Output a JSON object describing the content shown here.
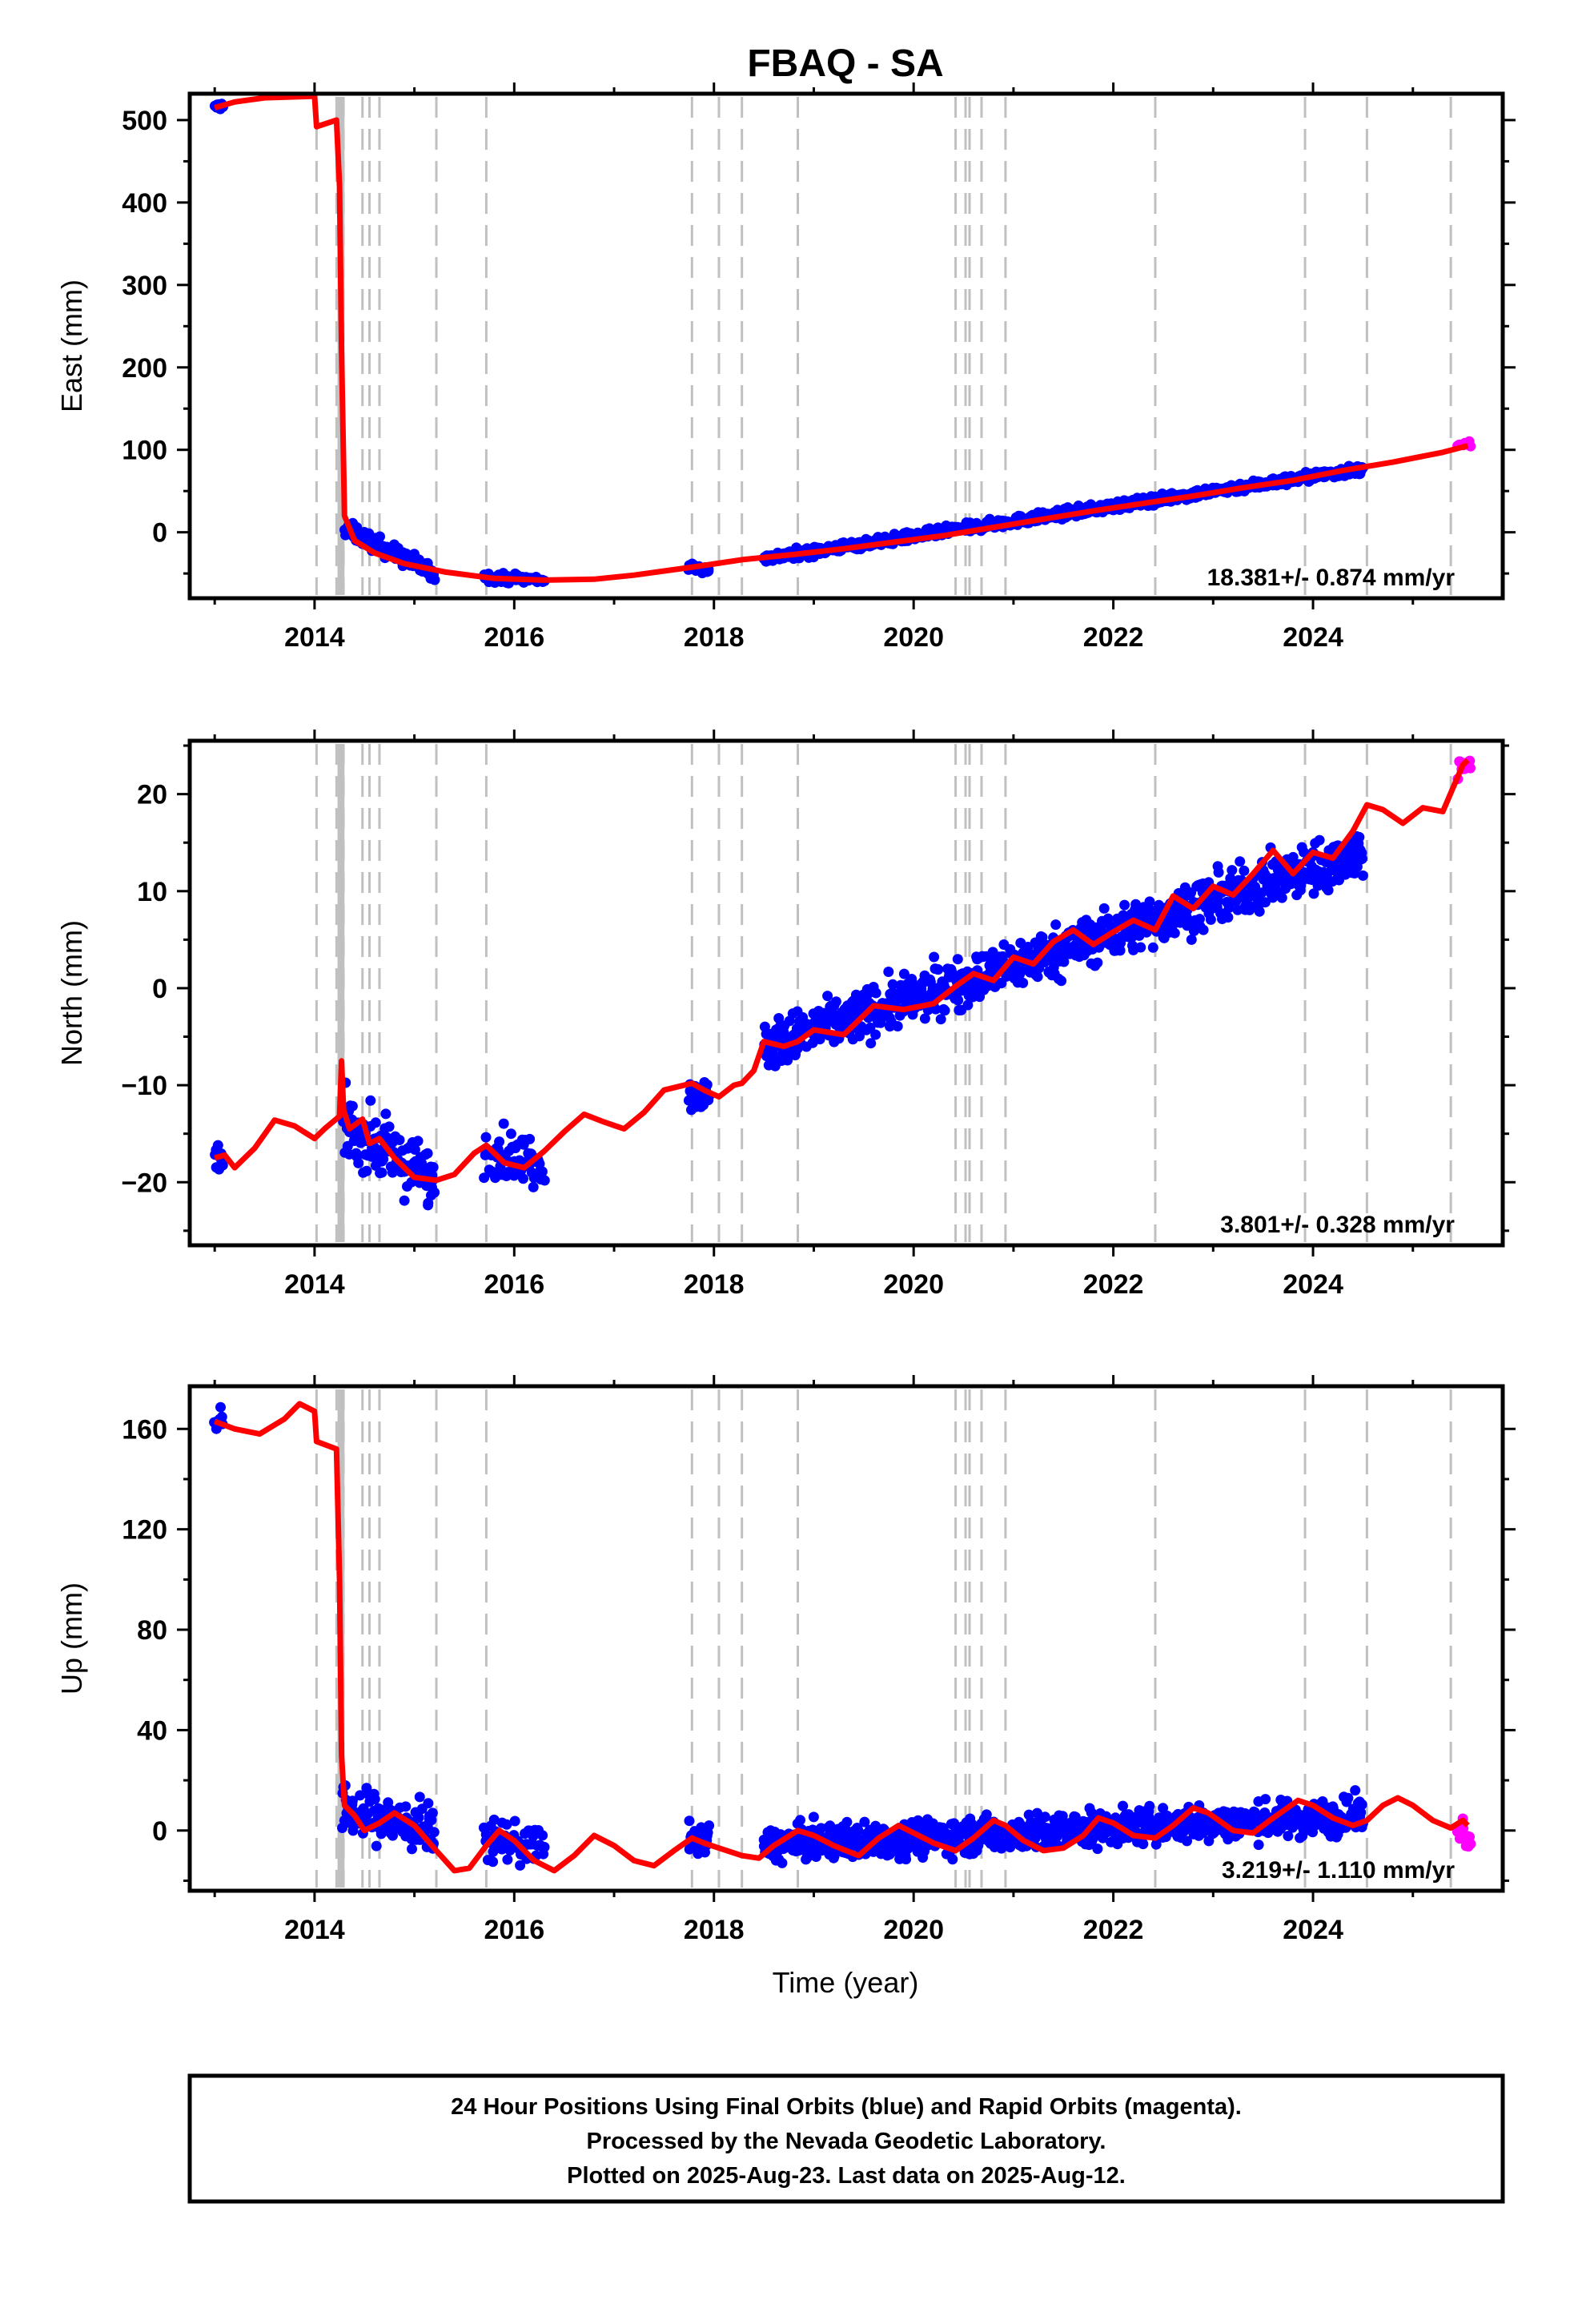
{
  "chart_data": {
    "type": "scatter",
    "title": "FBAQ - SA",
    "xlabel": "Time (year)",
    "xlim": [
      2012.75,
      2025.9
    ],
    "x_ticks": [
      "2014",
      "2016",
      "2018",
      "2020",
      "2022",
      "2024"
    ],
    "grid": false,
    "legend": "none",
    "colors": {
      "final": "#0000ff",
      "rapid": "#ff00ff",
      "model": "#ff0000",
      "event_lines": "#c0c0c0"
    },
    "event_lines": [
      2014.02,
      2014.22,
      2014.25,
      2014.27,
      2014.29,
      2014.48,
      2014.55,
      2014.65,
      2015.22,
      2015.72,
      2017.78,
      2018.05,
      2018.28,
      2018.84,
      2020.42,
      2020.52,
      2020.56,
      2020.68,
      2020.92,
      2022.42,
      2023.92,
      2024.54,
      2025.38
    ],
    "footer": [
      "24 Hour Positions Using Final Orbits (blue) and Rapid Orbits (magenta).",
      "Processed by the Nevada Geodetic Laboratory.",
      "Plotted on 2025-Aug-23. Last data on 2025-Aug-12."
    ],
    "panels": [
      {
        "name": "east",
        "ylabel": "East (mm)",
        "ylim": [
          -80,
          532
        ],
        "y_ticks": [
          0,
          100,
          200,
          300,
          400,
          500
        ],
        "rate_text": "18.381+/- 0.874 mm/yr",
        "model_line": [
          [
            2013.0,
            515
          ],
          [
            2013.2,
            522
          ],
          [
            2013.5,
            527
          ],
          [
            2014.0,
            529
          ],
          [
            2014.02,
            492
          ],
          [
            2014.22,
            500
          ],
          [
            2014.25,
            420
          ],
          [
            2014.27,
            220
          ],
          [
            2014.3,
            20
          ],
          [
            2014.4,
            -10
          ],
          [
            2014.6,
            -25
          ],
          [
            2014.9,
            -38
          ],
          [
            2015.3,
            -48
          ],
          [
            2015.8,
            -56
          ],
          [
            2016.3,
            -58
          ],
          [
            2016.8,
            -57
          ],
          [
            2017.2,
            -52
          ],
          [
            2017.8,
            -42
          ],
          [
            2018.3,
            -33
          ],
          [
            2018.8,
            -27
          ],
          [
            2019.3,
            -20
          ],
          [
            2019.8,
            -12
          ],
          [
            2020.3,
            -4
          ],
          [
            2020.8,
            6
          ],
          [
            2021.3,
            16
          ],
          [
            2021.8,
            26
          ],
          [
            2022.3,
            35
          ],
          [
            2022.8,
            44
          ],
          [
            2023.3,
            54
          ],
          [
            2023.8,
            63
          ],
          [
            2024.3,
            75
          ],
          [
            2024.8,
            85
          ],
          [
            2025.3,
            97
          ],
          [
            2025.55,
            105
          ]
        ],
        "final_points": [
          {
            "x0": 2013.0,
            "x1": 2013.08,
            "y0": 515,
            "y1": 518,
            "n": 10,
            "noise": 3
          },
          {
            "x0": 2014.3,
            "x1": 2015.2,
            "y0": 5,
            "y1": -50,
            "n": 140,
            "noise": 7
          },
          {
            "x0": 2015.7,
            "x1": 2016.3,
            "y0": -54,
            "y1": -58,
            "n": 60,
            "noise": 4
          },
          {
            "x0": 2017.75,
            "x1": 2017.95,
            "y0": -42,
            "y1": -46,
            "n": 30,
            "noise": 3
          },
          {
            "x0": 2018.5,
            "x1": 2024.5,
            "y0": -32,
            "y1": 77,
            "n": 900,
            "noise": 4
          }
        ],
        "rapid_points": [
          {
            "x0": 2025.45,
            "x1": 2025.58,
            "y0": 104,
            "y1": 108,
            "n": 12,
            "noise": 2
          }
        ]
      },
      {
        "name": "north",
        "ylabel": "North (mm)",
        "ylim": [
          -26.5,
          25.5
        ],
        "y_ticks": [
          -20,
          -10,
          0,
          10,
          20
        ],
        "rate_text": "3.801+/- 0.328 mm/yr",
        "model_line": [
          [
            2013.0,
            -17.5
          ],
          [
            2013.1,
            -17.2
          ],
          [
            2013.2,
            -18.5
          ],
          [
            2013.4,
            -16.5
          ],
          [
            2013.6,
            -13.6
          ],
          [
            2013.8,
            -14.2
          ],
          [
            2014.0,
            -15.5
          ],
          [
            2014.1,
            -14.5
          ],
          [
            2014.25,
            -13.2
          ],
          [
            2014.27,
            -7.5
          ],
          [
            2014.29,
            -12.5
          ],
          [
            2014.35,
            -14.5
          ],
          [
            2014.48,
            -13.5
          ],
          [
            2014.55,
            -16.0
          ],
          [
            2014.65,
            -15.5
          ],
          [
            2014.8,
            -17.5
          ],
          [
            2015.0,
            -19.5
          ],
          [
            2015.22,
            -19.8
          ],
          [
            2015.4,
            -19.2
          ],
          [
            2015.6,
            -17.0
          ],
          [
            2015.72,
            -16.2
          ],
          [
            2015.9,
            -18.0
          ],
          [
            2016.1,
            -18.5
          ],
          [
            2016.3,
            -16.8
          ],
          [
            2016.5,
            -14.8
          ],
          [
            2016.7,
            -13.0
          ],
          [
            2016.9,
            -13.8
          ],
          [
            2017.1,
            -14.5
          ],
          [
            2017.3,
            -12.8
          ],
          [
            2017.5,
            -10.5
          ],
          [
            2017.78,
            -9.8
          ],
          [
            2017.9,
            -10.5
          ],
          [
            2018.05,
            -11.2
          ],
          [
            2018.2,
            -10.0
          ],
          [
            2018.28,
            -9.8
          ],
          [
            2018.4,
            -8.5
          ],
          [
            2018.5,
            -5.5
          ],
          [
            2018.7,
            -6.0
          ],
          [
            2018.84,
            -5.5
          ],
          [
            2019.0,
            -4.3
          ],
          [
            2019.3,
            -4.8
          ],
          [
            2019.6,
            -1.8
          ],
          [
            2019.9,
            -2.2
          ],
          [
            2020.2,
            -1.6
          ],
          [
            2020.42,
            0.2
          ],
          [
            2020.6,
            1.5
          ],
          [
            2020.8,
            0.8
          ],
          [
            2021.0,
            3.2
          ],
          [
            2021.2,
            2.5
          ],
          [
            2021.4,
            4.8
          ],
          [
            2021.6,
            6.0
          ],
          [
            2021.8,
            4.5
          ],
          [
            2022.0,
            5.8
          ],
          [
            2022.2,
            7.0
          ],
          [
            2022.42,
            6.0
          ],
          [
            2022.6,
            9.5
          ],
          [
            2022.8,
            8.2
          ],
          [
            2023.0,
            10.5
          ],
          [
            2023.2,
            9.6
          ],
          [
            2023.4,
            11.8
          ],
          [
            2023.6,
            14.2
          ],
          [
            2023.8,
            11.8
          ],
          [
            2024.0,
            14.0
          ],
          [
            2024.2,
            13.4
          ],
          [
            2024.4,
            16.2
          ],
          [
            2024.54,
            18.9
          ],
          [
            2024.7,
            18.4
          ],
          [
            2024.9,
            17.0
          ],
          [
            2025.1,
            18.6
          ],
          [
            2025.3,
            18.2
          ],
          [
            2025.5,
            23.0
          ],
          [
            2025.55,
            23.5
          ]
        ],
        "final_points": [
          {
            "x0": 2013.0,
            "x1": 2013.08,
            "y0": -17.5,
            "y1": -17.8,
            "n": 10,
            "noise": 1
          },
          {
            "x0": 2014.28,
            "x1": 2015.2,
            "y0": -14.0,
            "y1": -20.0,
            "n": 140,
            "noise": 2.2
          },
          {
            "x0": 2015.7,
            "x1": 2016.3,
            "y0": -16.5,
            "y1": -18.0,
            "n": 60,
            "noise": 1.8
          },
          {
            "x0": 2017.75,
            "x1": 2017.95,
            "y0": -10.5,
            "y1": -11.2,
            "n": 30,
            "noise": 1.2
          },
          {
            "x0": 2018.5,
            "x1": 2024.5,
            "y0": -6.0,
            "y1": 14.0,
            "n": 900,
            "noise": 1.8
          }
        ],
        "rapid_points": [
          {
            "x0": 2025.45,
            "x1": 2025.58,
            "y0": 22.5,
            "y1": 23.5,
            "n": 12,
            "noise": 1
          }
        ]
      },
      {
        "name": "up",
        "ylabel": "Up (mm)",
        "ylim": [
          -24,
          177
        ],
        "y_ticks": [
          0,
          40,
          80,
          120,
          160
        ],
        "rate_text": "3.219+/- 1.110 mm/yr",
        "model_line": [
          [
            2013.0,
            163
          ],
          [
            2013.2,
            160
          ],
          [
            2013.45,
            158
          ],
          [
            2013.7,
            164
          ],
          [
            2013.85,
            170
          ],
          [
            2014.0,
            167
          ],
          [
            2014.02,
            155
          ],
          [
            2014.22,
            152
          ],
          [
            2014.25,
            100
          ],
          [
            2014.27,
            30
          ],
          [
            2014.3,
            10
          ],
          [
            2014.4,
            6
          ],
          [
            2014.5,
            0
          ],
          [
            2014.65,
            3
          ],
          [
            2014.8,
            7
          ],
          [
            2015.0,
            2
          ],
          [
            2015.22,
            -8
          ],
          [
            2015.4,
            -16
          ],
          [
            2015.55,
            -15
          ],
          [
            2015.72,
            -6
          ],
          [
            2015.85,
            0
          ],
          [
            2016.0,
            -4
          ],
          [
            2016.2,
            -12
          ],
          [
            2016.4,
            -16
          ],
          [
            2016.6,
            -10
          ],
          [
            2016.8,
            -2
          ],
          [
            2017.0,
            -6
          ],
          [
            2017.2,
            -12
          ],
          [
            2017.4,
            -14
          ],
          [
            2017.6,
            -8
          ],
          [
            2017.78,
            -3
          ],
          [
            2017.9,
            -5
          ],
          [
            2018.05,
            -7
          ],
          [
            2018.28,
            -10
          ],
          [
            2018.45,
            -11
          ],
          [
            2018.6,
            -6
          ],
          [
            2018.84,
            0
          ],
          [
            2019.0,
            -2
          ],
          [
            2019.2,
            -6
          ],
          [
            2019.45,
            -10
          ],
          [
            2019.65,
            -3
          ],
          [
            2019.85,
            2
          ],
          [
            2020.0,
            -1
          ],
          [
            2020.2,
            -5
          ],
          [
            2020.42,
            -8
          ],
          [
            2020.6,
            -3
          ],
          [
            2020.8,
            4
          ],
          [
            2020.92,
            2
          ],
          [
            2021.1,
            -4
          ],
          [
            2021.3,
            -8
          ],
          [
            2021.5,
            -7
          ],
          [
            2021.7,
            -2
          ],
          [
            2021.85,
            5
          ],
          [
            2022.0,
            3
          ],
          [
            2022.2,
            -2
          ],
          [
            2022.42,
            -3
          ],
          [
            2022.6,
            2
          ],
          [
            2022.8,
            9
          ],
          [
            2022.95,
            7
          ],
          [
            2023.2,
            0
          ],
          [
            2023.4,
            -1
          ],
          [
            2023.6,
            5
          ],
          [
            2023.85,
            12
          ],
          [
            2024.0,
            10
          ],
          [
            2024.2,
            5
          ],
          [
            2024.4,
            2
          ],
          [
            2024.54,
            4
          ],
          [
            2024.7,
            10
          ],
          [
            2024.85,
            13
          ],
          [
            2025.0,
            10
          ],
          [
            2025.2,
            4
          ],
          [
            2025.38,
            1
          ],
          [
            2025.5,
            4
          ],
          [
            2025.55,
            2
          ]
        ],
        "final_points": [
          {
            "x0": 2013.0,
            "x1": 2013.08,
            "y0": 164,
            "y1": 162,
            "n": 10,
            "noise": 4
          },
          {
            "x0": 2014.28,
            "x1": 2015.2,
            "y0": 8,
            "y1": 0,
            "n": 140,
            "noise": 7
          },
          {
            "x0": 2015.7,
            "x1": 2016.3,
            "y0": -3,
            "y1": -6,
            "n": 60,
            "noise": 6
          },
          {
            "x0": 2017.75,
            "x1": 2017.95,
            "y0": -3,
            "y1": -4,
            "n": 30,
            "noise": 4
          },
          {
            "x0": 2018.5,
            "x1": 2024.5,
            "y0": -6,
            "y1": 6,
            "n": 900,
            "noise": 5
          }
        ],
        "rapid_points": [
          {
            "x0": 2025.45,
            "x1": 2025.58,
            "y0": 2,
            "y1": -2,
            "n": 12,
            "noise": 4
          }
        ]
      }
    ]
  }
}
